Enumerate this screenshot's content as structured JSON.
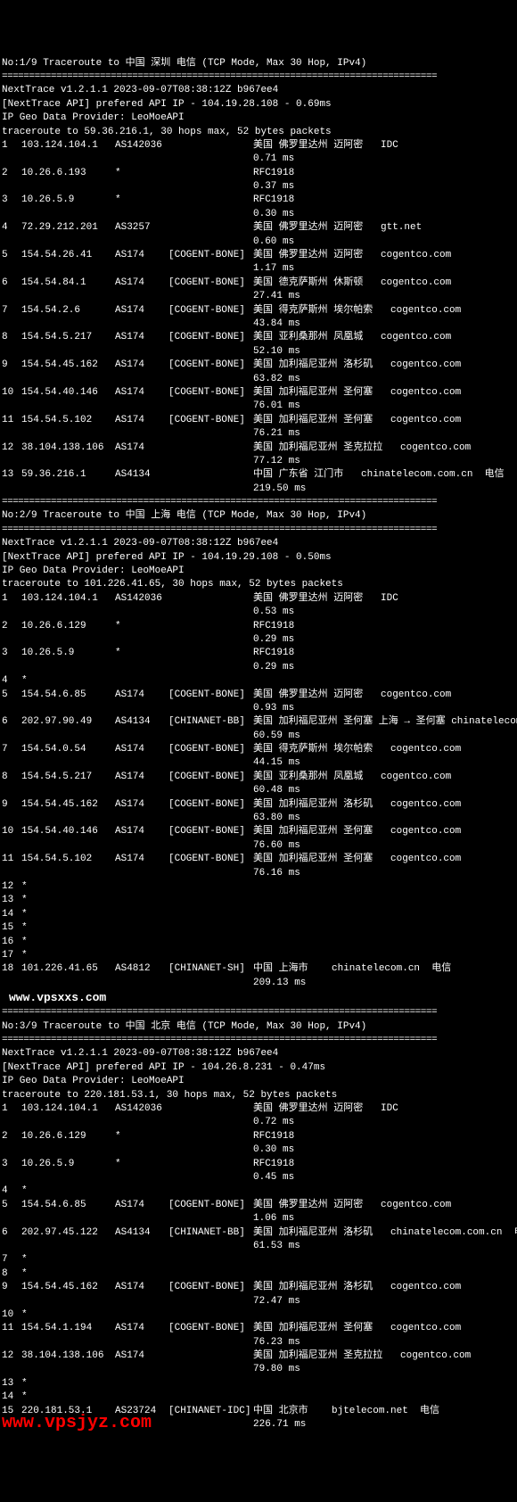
{
  "separator": "================================================================================",
  "traces": [
    {
      "header": "No:1/9 Traceroute to 中国 深圳 电信 (TCP Mode, Max 30 Hop, IPv4)",
      "meta": [
        "NextTrace v1.2.1.1 2023-09-07T08:38:12Z b967ee4",
        "[NextTrace API] prefered API IP - 104.19.28.108 - 0.69ms",
        "IP Geo Data Provider: LeoMoeAPI",
        "traceroute to 59.36.216.1, 30 hops max, 52 bytes packets"
      ],
      "hops": [
        {
          "n": "1",
          "ip": "103.124.104.1",
          "as": "AS142036",
          "bone": "",
          "loc": "美国 佛罗里达州 迈阿密   IDC",
          "ms": "0.71 ms"
        },
        {
          "n": "2",
          "ip": "10.26.6.193",
          "as": "*",
          "bone": "",
          "loc": "RFC1918",
          "ms": "0.37 ms"
        },
        {
          "n": "3",
          "ip": "10.26.5.9",
          "as": "*",
          "bone": "",
          "loc": "RFC1918",
          "ms": "0.30 ms"
        },
        {
          "n": "4",
          "ip": "72.29.212.201",
          "as": "AS3257",
          "bone": "",
          "loc": "美国 佛罗里达州 迈阿密   gtt.net",
          "ms": "0.60 ms"
        },
        {
          "n": "5",
          "ip": "154.54.26.41",
          "as": "AS174",
          "bone": "[COGENT-BONE]",
          "loc": "美国 佛罗里达州 迈阿密   cogentco.com",
          "ms": "1.17 ms"
        },
        {
          "n": "6",
          "ip": "154.54.84.1",
          "as": "AS174",
          "bone": "[COGENT-BONE]",
          "loc": "美国 德克萨斯州 休斯顿   cogentco.com",
          "ms": "27.41 ms"
        },
        {
          "n": "7",
          "ip": "154.54.2.6",
          "as": "AS174",
          "bone": "[COGENT-BONE]",
          "loc": "美国 得克萨斯州 埃尔帕索   cogentco.com",
          "ms": "43.84 ms"
        },
        {
          "n": "8",
          "ip": "154.54.5.217",
          "as": "AS174",
          "bone": "[COGENT-BONE]",
          "loc": "美国 亚利桑那州 凤凰城   cogentco.com",
          "ms": "52.10 ms"
        },
        {
          "n": "9",
          "ip": "154.54.45.162",
          "as": "AS174",
          "bone": "[COGENT-BONE]",
          "loc": "美国 加利福尼亚州 洛杉矶   cogentco.com",
          "ms": "63.82 ms"
        },
        {
          "n": "10",
          "ip": "154.54.40.146",
          "as": "AS174",
          "bone": "[COGENT-BONE]",
          "loc": "美国 加利福尼亚州 圣何塞   cogentco.com",
          "ms": "76.01 ms"
        },
        {
          "n": "11",
          "ip": "154.54.5.102",
          "as": "AS174",
          "bone": "[COGENT-BONE]",
          "loc": "美国 加利福尼亚州 圣何塞   cogentco.com",
          "ms": "76.21 ms"
        },
        {
          "n": "12",
          "ip": "38.104.138.106",
          "as": "AS174",
          "bone": "",
          "loc": "美国 加利福尼亚州 圣克拉拉   cogentco.com",
          "ms": "77.12 ms"
        },
        {
          "n": "13",
          "ip": "59.36.216.1",
          "as": "AS4134",
          "bone": "",
          "loc": "中国 广东省 江门市   chinatelecom.com.cn  电信",
          "ms": "219.50 ms"
        }
      ]
    },
    {
      "header": "No:2/9 Traceroute to 中国 上海 电信 (TCP Mode, Max 30 Hop, IPv4)",
      "meta": [
        "NextTrace v1.2.1.1 2023-09-07T08:38:12Z b967ee4",
        "[NextTrace API] prefered API IP - 104.19.29.108 - 0.50ms",
        "IP Geo Data Provider: LeoMoeAPI",
        "traceroute to 101.226.41.65, 30 hops max, 52 bytes packets"
      ],
      "hops": [
        {
          "n": "1",
          "ip": "103.124.104.1",
          "as": "AS142036",
          "bone": "",
          "loc": "美国 佛罗里达州 迈阿密   IDC",
          "ms": "0.53 ms"
        },
        {
          "n": "2",
          "ip": "10.26.6.129",
          "as": "*",
          "bone": "",
          "loc": "RFC1918",
          "ms": "0.29 ms"
        },
        {
          "n": "3",
          "ip": "10.26.5.9",
          "as": "*",
          "bone": "",
          "loc": "RFC1918",
          "ms": "0.29 ms"
        },
        {
          "n": "4",
          "ip": "*",
          "as": "",
          "bone": "",
          "loc": "",
          "ms": ""
        },
        {
          "n": "5",
          "ip": "154.54.6.85",
          "as": "AS174",
          "bone": "[COGENT-BONE]",
          "loc": "美国 佛罗里达州 迈阿密   cogentco.com",
          "ms": "0.93 ms"
        },
        {
          "n": "6",
          "ip": "202.97.90.49",
          "as": "AS4134",
          "bone": "[CHINANET-BB]",
          "loc": "美国 加利福尼亚州 圣何塞 上海 → 圣何塞 chinatelecom",
          "ms": "60.59 ms"
        },
        {
          "n": "7",
          "ip": "154.54.0.54",
          "as": "AS174",
          "bone": "[COGENT-BONE]",
          "loc": "美国 得克萨斯州 埃尔帕索   cogentco.com",
          "ms": "44.15 ms"
        },
        {
          "n": "8",
          "ip": "154.54.5.217",
          "as": "AS174",
          "bone": "[COGENT-BONE]",
          "loc": "美国 亚利桑那州 凤凰城   cogentco.com",
          "ms": "60.48 ms"
        },
        {
          "n": "9",
          "ip": "154.54.45.162",
          "as": "AS174",
          "bone": "[COGENT-BONE]",
          "loc": "美国 加利福尼亚州 洛杉矶   cogentco.com",
          "ms": "63.80 ms"
        },
        {
          "n": "10",
          "ip": "154.54.40.146",
          "as": "AS174",
          "bone": "[COGENT-BONE]",
          "loc": "美国 加利福尼亚州 圣何塞   cogentco.com",
          "ms": "76.60 ms"
        },
        {
          "n": "11",
          "ip": "154.54.5.102",
          "as": "AS174",
          "bone": "[COGENT-BONE]",
          "loc": "美国 加利福尼亚州 圣何塞   cogentco.com",
          "ms": "76.16 ms"
        },
        {
          "n": "12",
          "ip": "*",
          "as": "",
          "bone": "",
          "loc": "",
          "ms": ""
        },
        {
          "n": "13",
          "ip": "*",
          "as": "",
          "bone": "",
          "loc": "",
          "ms": ""
        },
        {
          "n": "14",
          "ip": "*",
          "as": "",
          "bone": "",
          "loc": "",
          "ms": ""
        },
        {
          "n": "15",
          "ip": "*",
          "as": "",
          "bone": "",
          "loc": "",
          "ms": ""
        },
        {
          "n": "16",
          "ip": "*",
          "as": "",
          "bone": "",
          "loc": "",
          "ms": ""
        },
        {
          "n": "17",
          "ip": "*",
          "as": "",
          "bone": "",
          "loc": "",
          "ms": ""
        },
        {
          "n": "18",
          "ip": "101.226.41.65",
          "as": "AS4812",
          "bone": "[CHINANET-SH]",
          "loc": "中国 上海市    chinatelecom.cn  电信",
          "ms": "209.13 ms"
        }
      ],
      "watermark": "www.vpsxxs.com"
    },
    {
      "header": "No:3/9 Traceroute to 中国 北京 电信 (TCP Mode, Max 30 Hop, IPv4)",
      "meta": [
        "NextTrace v1.2.1.1 2023-09-07T08:38:12Z b967ee4",
        "[NextTrace API] prefered API IP - 104.26.8.231 - 0.47ms",
        "IP Geo Data Provider: LeoMoeAPI",
        "traceroute to 220.181.53.1, 30 hops max, 52 bytes packets"
      ],
      "hops": [
        {
          "n": "1",
          "ip": "103.124.104.1",
          "as": "AS142036",
          "bone": "",
          "loc": "美国 佛罗里达州 迈阿密   IDC",
          "ms": "0.72 ms"
        },
        {
          "n": "2",
          "ip": "10.26.6.129",
          "as": "*",
          "bone": "",
          "loc": "RFC1918",
          "ms": "0.30 ms"
        },
        {
          "n": "3",
          "ip": "10.26.5.9",
          "as": "*",
          "bone": "",
          "loc": "RFC1918",
          "ms": "0.45 ms"
        },
        {
          "n": "4",
          "ip": "*",
          "as": "",
          "bone": "",
          "loc": "",
          "ms": ""
        },
        {
          "n": "5",
          "ip": "154.54.6.85",
          "as": "AS174",
          "bone": "[COGENT-BONE]",
          "loc": "美国 佛罗里达州 迈阿密   cogentco.com",
          "ms": "1.06 ms"
        },
        {
          "n": "6",
          "ip": "202.97.45.122",
          "as": "AS4134",
          "bone": "[CHINANET-BB]",
          "loc": "美国 加利福尼亚州 洛杉矶   chinatelecom.com.cn  电信",
          "ms": "61.53 ms"
        },
        {
          "n": "7",
          "ip": "*",
          "as": "",
          "bone": "",
          "loc": "",
          "ms": ""
        },
        {
          "n": "8",
          "ip": "*",
          "as": "",
          "bone": "",
          "loc": "",
          "ms": ""
        },
        {
          "n": "9",
          "ip": "154.54.45.162",
          "as": "AS174",
          "bone": "[COGENT-BONE]",
          "loc": "美国 加利福尼亚州 洛杉矶   cogentco.com",
          "ms": "72.47 ms"
        },
        {
          "n": "10",
          "ip": "*",
          "as": "",
          "bone": "",
          "loc": "",
          "ms": ""
        },
        {
          "n": "11",
          "ip": "154.54.1.194",
          "as": "AS174",
          "bone": "[COGENT-BONE]",
          "loc": "美国 加利福尼亚州 圣何塞   cogentco.com",
          "ms": "76.23 ms"
        },
        {
          "n": "12",
          "ip": "38.104.138.106",
          "as": "AS174",
          "bone": "",
          "loc": "美国 加利福尼亚州 圣克拉拉   cogentco.com",
          "ms": "79.80 ms"
        },
        {
          "n": "13",
          "ip": "*",
          "as": "",
          "bone": "",
          "loc": "",
          "ms": ""
        },
        {
          "n": "14",
          "ip": "*",
          "as": "",
          "bone": "",
          "loc": "",
          "ms": ""
        },
        {
          "n": "15",
          "ip": "220.181.53.1",
          "as": "AS23724",
          "bone": "[CHINANET-IDC]",
          "loc": "中国 北京市    bjtelecom.net  电信",
          "ms": "226.71 ms"
        }
      ],
      "watermark2": "www.vpsjyz.com"
    }
  ]
}
